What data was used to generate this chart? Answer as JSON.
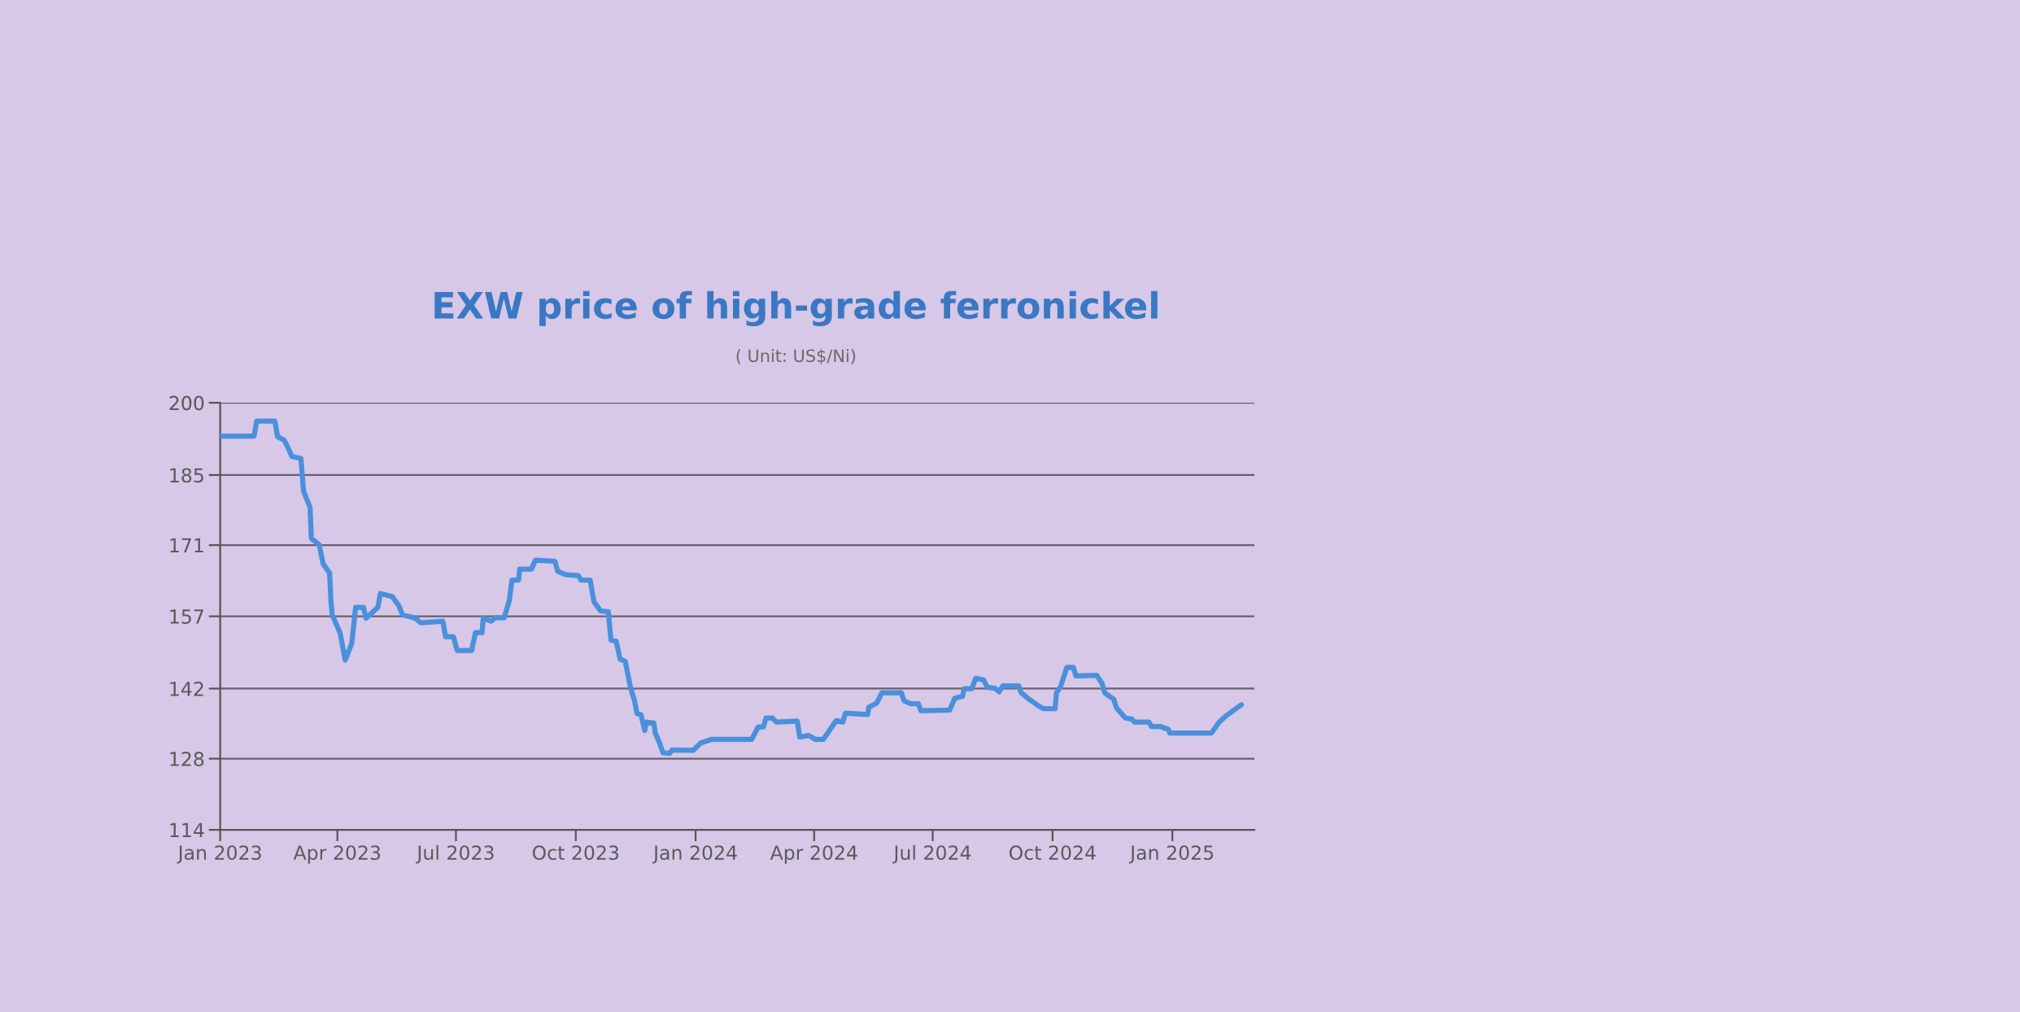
{
  "chart_data": {
    "type": "line",
    "title": "EXW price of high-grade ferronickel",
    "subtitle": "( Unit: US$/Ni)",
    "x": [
      "2023-01-01",
      "2023-01-27",
      "2023-01-29",
      "2023-02-12",
      "2023-02-14",
      "2023-02-19",
      "2023-02-22",
      "2023-02-25",
      "2023-03-04",
      "2023-03-06",
      "2023-03-11",
      "2023-03-12",
      "2023-03-18",
      "2023-03-21",
      "2023-03-26",
      "2023-03-27",
      "2023-03-28",
      "2023-04-03",
      "2023-04-07",
      "2023-04-12",
      "2023-04-15",
      "2023-04-21",
      "2023-04-23",
      "2023-05-02",
      "2023-05-04",
      "2023-05-13",
      "2023-05-18",
      "2023-05-21",
      "2023-05-31",
      "2023-06-04",
      "2023-06-21",
      "2023-06-23",
      "2023-06-29",
      "2023-07-02",
      "2023-07-13",
      "2023-07-16",
      "2023-07-21",
      "2023-07-22",
      "2023-07-28",
      "2023-07-31",
      "2023-08-07",
      "2023-08-11",
      "2023-08-13",
      "2023-08-18",
      "2023-08-19",
      "2023-08-28",
      "2023-08-31",
      "2023-09-15",
      "2023-09-17",
      "2023-09-23",
      "2023-10-03",
      "2023-10-05",
      "2023-10-12",
      "2023-10-15",
      "2023-10-20",
      "2023-10-26",
      "2023-10-28",
      "2023-11-01",
      "2023-11-04",
      "2023-11-08",
      "2023-11-12",
      "2023-11-15",
      "2023-11-17",
      "2023-11-20",
      "2023-11-23",
      "2023-11-24",
      "2023-11-30",
      "2023-12-01",
      "2023-12-04",
      "2023-12-07",
      "2023-12-12",
      "2023-12-14",
      "2023-12-30",
      "2024-01-05",
      "2024-01-13",
      "2024-02-13",
      "2024-02-18",
      "2024-02-22",
      "2024-02-24",
      "2024-02-29",
      "2024-03-03",
      "2024-03-19",
      "2024-03-21",
      "2024-03-28",
      "2024-04-02",
      "2024-04-08",
      "2024-04-14",
      "2024-04-18",
      "2024-04-23",
      "2024-04-25",
      "2024-05-12",
      "2024-05-13",
      "2024-05-19",
      "2024-05-23",
      "2024-06-07",
      "2024-06-09",
      "2024-06-14",
      "2024-06-20",
      "2024-06-22",
      "2024-07-14",
      "2024-07-18",
      "2024-07-24",
      "2024-07-25",
      "2024-07-31",
      "2024-08-03",
      "2024-08-09",
      "2024-08-12",
      "2024-08-18",
      "2024-08-21",
      "2024-08-24",
      "2024-09-05",
      "2024-09-07",
      "2024-09-13",
      "2024-09-20",
      "2024-09-24",
      "2024-10-03",
      "2024-10-04",
      "2024-10-07",
      "2024-10-12",
      "2024-10-17",
      "2024-10-19",
      "2024-11-04",
      "2024-11-08",
      "2024-11-10",
      "2024-11-17",
      "2024-11-19",
      "2024-11-21",
      "2024-11-26",
      "2024-12-01",
      "2024-12-03",
      "2024-12-14",
      "2024-12-16",
      "2024-12-23",
      "2024-12-29",
      "2024-12-30",
      "2025-01-31",
      "2025-02-06",
      "2025-02-11",
      "2025-02-23"
    ],
    "series": [
      {
        "color": "#4a90dc",
        "values": [
          193.3,
          193.3,
          196.3,
          196.3,
          193.2,
          192.5,
          191.0,
          189.2,
          188.8,
          182.2,
          178.9,
          172.7,
          171.4,
          167.6,
          165.7,
          160.2,
          157.3,
          153.7,
          148.2,
          151.5,
          158.8,
          158.8,
          156.6,
          158.8,
          161.6,
          161.0,
          159.2,
          157.3,
          156.6,
          155.7,
          156.0,
          152.9,
          152.9,
          150.1,
          150.1,
          153.7,
          153.7,
          156.6,
          156.0,
          156.7,
          156.7,
          160.2,
          164.3,
          164.3,
          166.5,
          166.5,
          168.3,
          168.1,
          166.1,
          165.4,
          165.2,
          164.3,
          164.3,
          159.9,
          158.1,
          157.9,
          152.2,
          152.0,
          148.4,
          147.9,
          142.7,
          140.1,
          137.4,
          137.2,
          134.0,
          135.7,
          135.5,
          133.5,
          131.7,
          129.5,
          129.4,
          130.1,
          130.0,
          131.5,
          132.2,
          132.2,
          134.7,
          134.7,
          136.5,
          136.5,
          135.7,
          135.9,
          132.7,
          133.0,
          132.2,
          132.2,
          134.5,
          136.0,
          135.7,
          137.5,
          137.2,
          138.7,
          139.5,
          141.6,
          141.6,
          140.0,
          139.4,
          139.4,
          138.0,
          138.1,
          140.5,
          140.9,
          142.4,
          142.4,
          144.5,
          144.2,
          142.7,
          142.5,
          141.8,
          143.0,
          143.0,
          141.6,
          140.3,
          139.0,
          138.4,
          138.4,
          141.6,
          142.7,
          146.7,
          146.7,
          145.0,
          145.1,
          143.5,
          141.6,
          140.3,
          138.6,
          138.0,
          136.5,
          136.3,
          135.7,
          135.7,
          134.8,
          134.8,
          134.2,
          133.5,
          133.5,
          135.7,
          136.9,
          139.2
        ]
      }
    ],
    "xlim": [
      "2023-01-01",
      "2025-03-05"
    ],
    "xticks": [
      {
        "value": "2023-01-01",
        "label": "Jan 2023"
      },
      {
        "value": "2023-04-01",
        "label": "Apr 2023"
      },
      {
        "value": "2023-07-01",
        "label": "Jul 2023"
      },
      {
        "value": "2023-10-01",
        "label": "Oct 2023"
      },
      {
        "value": "2024-01-01",
        "label": "Jan 2024"
      },
      {
        "value": "2024-04-01",
        "label": "Apr 2024"
      },
      {
        "value": "2024-07-01",
        "label": "Jul 2024"
      },
      {
        "value": "2024-10-01",
        "label": "Oct 2024"
      },
      {
        "value": "2025-01-01",
        "label": "Jan 2025"
      }
    ],
    "ylim": [
      114,
      200
    ],
    "yticks": [
      114,
      {
        "value": 128.333,
        "label": "128"
      },
      {
        "value": 142.45,
        "label": "142"
      },
      157,
      {
        "value": 171.333,
        "label": "171"
      },
      {
        "value": 185.45,
        "label": "185"
      },
      200
    ],
    "grid": "y",
    "legend": false,
    "marker": "none",
    "line_style": "solid"
  }
}
